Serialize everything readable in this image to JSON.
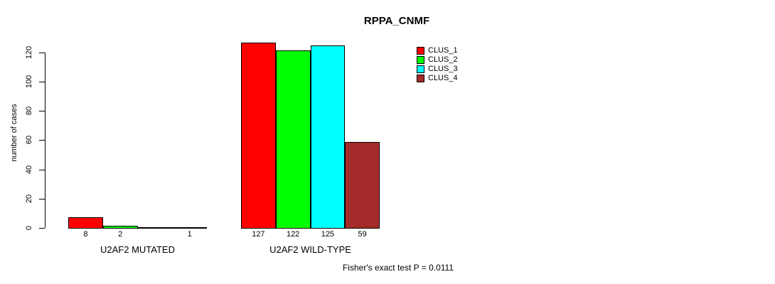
{
  "chart_data": {
    "type": "bar",
    "title": "RPPA_CNMF",
    "ylabel": "number of cases",
    "xlabel": "",
    "ylim": [
      0,
      130
    ],
    "yticks": [
      "0",
      "20",
      "40",
      "60",
      "80",
      "100",
      "120"
    ],
    "grid": false,
    "legend_position": "top-right",
    "categories": [
      "U2AF2 MUTATED",
      "U2AF2 WILD-TYPE"
    ],
    "series": [
      {
        "name": "CLUS_1",
        "color": "#ff0000",
        "values": [
          8,
          127
        ]
      },
      {
        "name": "CLUS_2",
        "color": "#00ff00",
        "values": [
          2,
          122
        ]
      },
      {
        "name": "CLUS_3",
        "color": "#00ffff",
        "values": [
          0,
          125
        ]
      },
      {
        "name": "CLUS_4",
        "color": "#a52a2a",
        "values": [
          1,
          59
        ]
      }
    ],
    "bar_value_labels": [
      [
        "8",
        "2",
        "",
        "1"
      ],
      [
        "127",
        "122",
        "125",
        "59"
      ]
    ],
    "annotation": "Fisher's exact test P = 0.0111",
    "axis_color": "#000000"
  }
}
